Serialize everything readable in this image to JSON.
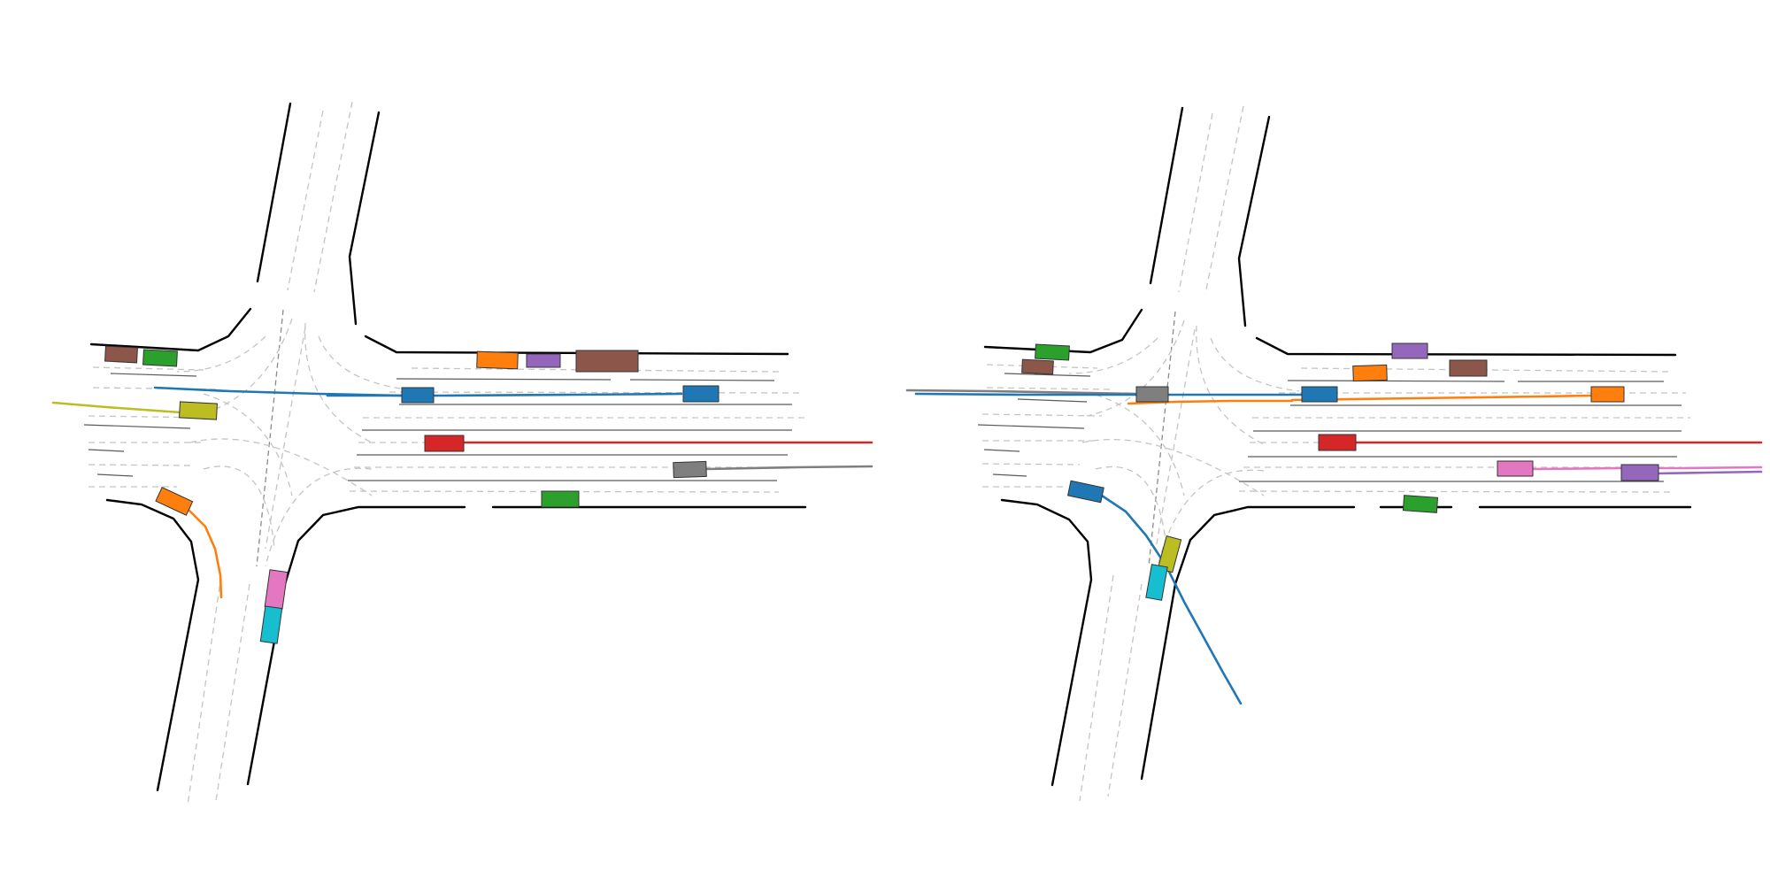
{
  "colors": {
    "blue": "#1f77b4",
    "orange": "#ff7f0e",
    "green": "#2ca02c",
    "red": "#d62728",
    "purple": "#9467bd",
    "brown": "#8c564b",
    "pink": "#e377c2",
    "gray": "#7f7f7f",
    "olive": "#bcbd22",
    "cyan": "#17becf",
    "road_edge": "#000000",
    "lane_divider": "#c4c4c4"
  },
  "panels": [
    {
      "name": "left-scene",
      "agents": [
        "brown",
        "green",
        "orange",
        "purple",
        "brown",
        "blue",
        "olive",
        "blue",
        "red",
        "gray",
        "green",
        "orange",
        "pink",
        "cyan"
      ]
    },
    {
      "name": "right-scene",
      "agents": [
        "green",
        "brown",
        "purple",
        "orange",
        "brown",
        "gray",
        "blue",
        "orange",
        "red",
        "pink",
        "purple",
        "green",
        "blue",
        "olive",
        "cyan"
      ]
    }
  ]
}
